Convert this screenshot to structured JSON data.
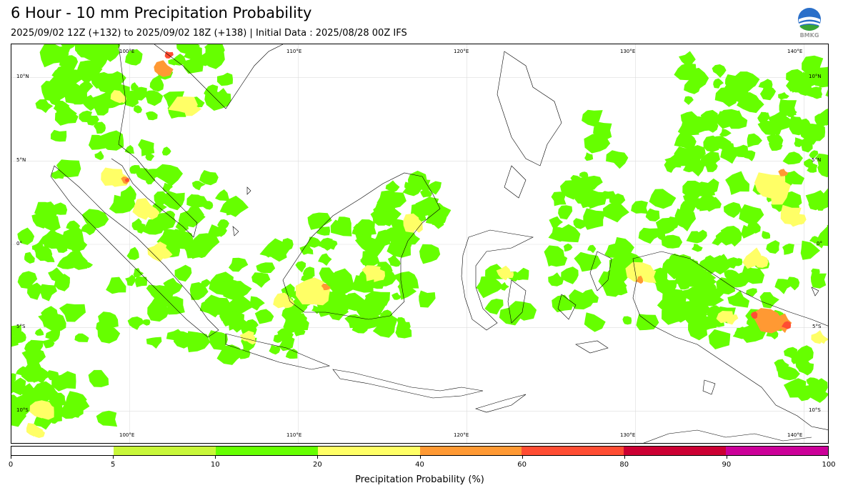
{
  "header": {
    "title": "6 Hour - 10 mm Precipitation Probability",
    "subtitle": "2025/09/02 12Z (+132) to 2025/09/02 18Z (+138) | Initial Data : 2025/08/28 00Z IFS",
    "logo_text": "BMKG"
  },
  "map": {
    "lon_labels_top": [
      "100°E",
      "110°E",
      "120°E",
      "130°E",
      "140°E"
    ],
    "lon_labels_bottom": [
      "100°E",
      "110°E",
      "120°E",
      "130°E",
      "140°E"
    ],
    "lat_labels_left": [
      "10°N",
      "5°N",
      "0°",
      "5°S",
      "10°S"
    ],
    "lat_labels_right": [
      "10°N",
      "5°N",
      "0°",
      "5°S",
      "10°S"
    ],
    "extent": {
      "lon_min": 93,
      "lon_max": 141.5,
      "lat_min": -12,
      "lat_max": 12
    },
    "precip_colors": {
      "p5": "#c8f73a",
      "p10": "#66ff00",
      "p20": "#ffff66",
      "p40": "#ff9933",
      "p60": "#ff4d33"
    }
  },
  "colorbar": {
    "title": "Precipitation Probability (%)",
    "segments": [
      {
        "from": 0,
        "to": 5,
        "color": "#ffffff"
      },
      {
        "from": 5,
        "to": 10,
        "color": "#c8f73a"
      },
      {
        "from": 10,
        "to": 20,
        "color": "#66ff00"
      },
      {
        "from": 20,
        "to": 40,
        "color": "#ffff66"
      },
      {
        "from": 40,
        "to": 60,
        "color": "#ff9933"
      },
      {
        "from": 60,
        "to": 80,
        "color": "#ff4d33"
      },
      {
        "from": 80,
        "to": 90,
        "color": "#cc0033"
      },
      {
        "from": 90,
        "to": 100,
        "color": "#cc0099"
      }
    ],
    "tick_labels": [
      "0",
      "5",
      "10",
      "20",
      "40",
      "60",
      "80",
      "90",
      "100"
    ]
  }
}
